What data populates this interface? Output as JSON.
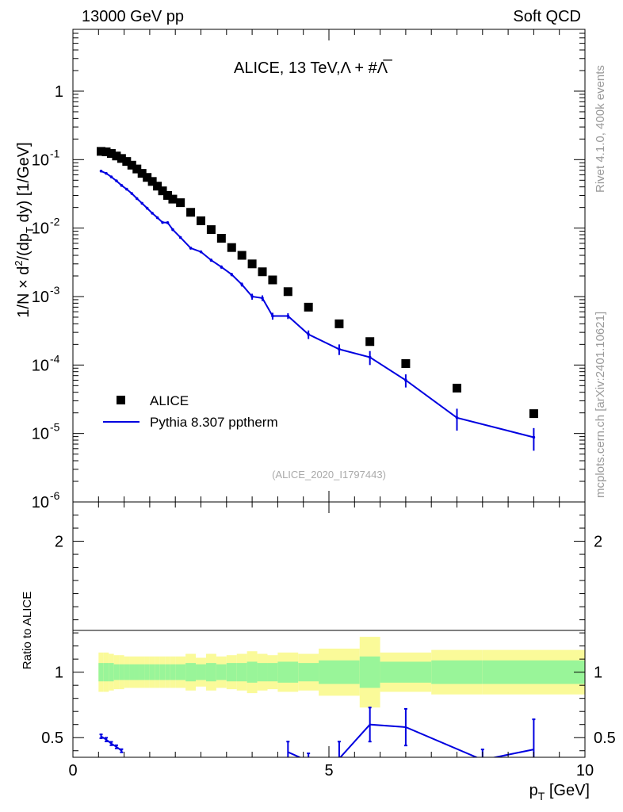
{
  "header": {
    "left": "13000 GeV pp",
    "right": "Soft QCD"
  },
  "plot_title": {
    "main": "ALICE, 13 TeV,",
    "particles": "Λ + #Λ̅"
  },
  "side_labels": {
    "rivet": "Rivet 4.1.0,  400k events",
    "mcplots": "mcplots.cern.ch [arXiv:2401.10621]"
  },
  "analysis_id": "(ALICE_2020_I1797443)",
  "legend": {
    "data": "ALICE",
    "mc": "Pythia 8.307 pptherm"
  },
  "colors": {
    "data": "#000000",
    "mc": "#0000e0",
    "band_inner": "#99f599",
    "band_outer": "#fafa99"
  },
  "chart_data": [
    {
      "type": "scatter",
      "title": "ALICE, 13 TeV, Λ + #Λ̅",
      "xlabel": "p_T [GeV]",
      "ylabel": "1/N × d²/(dp_T dy) [1/GeV]",
      "yscale": "log",
      "xlim": [
        0,
        10
      ],
      "ylim": [
        1e-06,
        8
      ],
      "ytick_labels": [
        {
          "v": 1,
          "base": "1",
          "exp": ""
        },
        {
          "v": 0.1,
          "base": "10",
          "exp": "-1"
        },
        {
          "v": 0.01,
          "base": "10",
          "exp": "-2"
        },
        {
          "v": 0.001,
          "base": "10",
          "exp": "-3"
        },
        {
          "v": 0.0001,
          "base": "10",
          "exp": "-4"
        },
        {
          "v": 1e-05,
          "base": "10",
          "exp": "-5"
        },
        {
          "v": 1e-06,
          "base": "10",
          "exp": "-6"
        }
      ],
      "series": [
        {
          "name": "ALICE",
          "x": [
            0.55,
            0.65,
            0.75,
            0.85,
            0.95,
            1.05,
            1.15,
            1.25,
            1.35,
            1.45,
            1.55,
            1.65,
            1.75,
            1.85,
            1.95,
            2.1,
            2.3,
            2.5,
            2.7,
            2.9,
            3.1,
            3.3,
            3.5,
            3.7,
            3.9,
            4.2,
            4.6,
            5.2,
            5.8,
            6.5,
            7.5,
            9.0
          ],
          "y": [
            0.132,
            0.13,
            0.123,
            0.113,
            0.104,
            0.094,
            0.083,
            0.073,
            0.063,
            0.055,
            0.048,
            0.041,
            0.035,
            0.03,
            0.0265,
            0.0235,
            0.017,
            0.0128,
            0.0095,
            0.0071,
            0.0052,
            0.004,
            0.003,
            0.0023,
            0.00175,
            0.00118,
            0.0007,
            0.0004,
            0.00022,
            0.000105,
            4.6e-05,
            1.95e-05
          ]
        },
        {
          "name": "Pythia 8.307 pptherm",
          "x": [
            0.55,
            0.65,
            0.75,
            0.85,
            0.95,
            1.05,
            1.15,
            1.25,
            1.35,
            1.45,
            1.55,
            1.65,
            1.75,
            1.85,
            1.95,
            2.1,
            2.3,
            2.5,
            2.7,
            2.9,
            3.1,
            3.3,
            3.5,
            3.7,
            3.9,
            4.2,
            4.6,
            5.2,
            5.8,
            6.5,
            7.5,
            9.0
          ],
          "y": [
            0.068,
            0.063,
            0.056,
            0.049,
            0.042,
            0.037,
            0.032,
            0.027,
            0.023,
            0.0195,
            0.0165,
            0.0142,
            0.0121,
            0.012,
            0.0095,
            0.0073,
            0.0051,
            0.0045,
            0.0034,
            0.0027,
            0.0021,
            0.0015,
            0.001,
            0.00095,
            0.00052,
            0.00052,
            0.00028,
            0.00017,
            0.00013,
            6e-05,
            1.7e-05,
            8.8e-06
          ],
          "err": [
            0.0025,
            0.002,
            0.0018,
            0.0016,
            0.0014,
            0.0012,
            0.001,
            0.0009,
            0.0008,
            0.0007,
            0.0006,
            0.0006,
            0.0005,
            0.0006,
            0.0004,
            0.0003,
            0.00025,
            0.0002,
            0.00018,
            0.00015,
            0.00012,
            0.0001,
            0.0001,
            9e-05,
            6e-05,
            5e-05,
            4e-05,
            3e-05,
            3e-05,
            1.3e-05,
            6e-06,
            3.2e-06
          ]
        }
      ]
    },
    {
      "type": "line",
      "ylabel": "Ratio to ALICE",
      "xlabel": "p_T [GeV]",
      "xlim": [
        0,
        10
      ],
      "ylim": [
        0.35,
        2.3
      ],
      "xticks": [
        0,
        5,
        10
      ],
      "yticks": [
        0.5,
        1,
        2
      ],
      "bins": [
        0.5,
        0.6,
        0.7,
        0.8,
        0.9,
        1.0,
        1.1,
        1.2,
        1.3,
        1.4,
        1.5,
        1.6,
        1.7,
        1.8,
        1.9,
        2.0,
        2.2,
        2.4,
        2.6,
        2.8,
        3.0,
        3.2,
        3.4,
        3.6,
        3.8,
        4.0,
        4.4,
        4.8,
        5.6,
        6.0,
        7.0,
        8.0,
        10.0
      ],
      "band_inner": [
        0.07,
        0.07,
        0.07,
        0.06,
        0.06,
        0.06,
        0.06,
        0.06,
        0.06,
        0.06,
        0.06,
        0.06,
        0.06,
        0.06,
        0.06,
        0.06,
        0.07,
        0.06,
        0.07,
        0.06,
        0.07,
        0.07,
        0.08,
        0.07,
        0.07,
        0.08,
        0.07,
        0.09,
        0.12,
        0.08,
        0.09,
        0.09
      ],
      "band_outer": [
        0.15,
        0.15,
        0.14,
        0.13,
        0.13,
        0.12,
        0.12,
        0.12,
        0.12,
        0.12,
        0.12,
        0.12,
        0.12,
        0.12,
        0.12,
        0.12,
        0.14,
        0.11,
        0.14,
        0.12,
        0.13,
        0.14,
        0.16,
        0.14,
        0.13,
        0.15,
        0.14,
        0.18,
        0.27,
        0.15,
        0.17,
        0.17
      ],
      "series": [
        {
          "name": "Pythia 8.307 pptherm",
          "x": [
            0.55,
            0.65,
            0.75,
            0.85,
            0.95,
            4.2,
            4.6,
            5.2,
            5.8,
            6.5,
            8.0,
            9.0
          ],
          "y": [
            0.51,
            0.485,
            0.455,
            0.43,
            0.4,
            0.39,
            0.32,
            0.34,
            0.6,
            0.58,
            0.33,
            0.41
          ],
          "err": [
            0.015,
            0.014,
            0.013,
            0.012,
            0.012,
            0.08,
            0.06,
            0.13,
            0.13,
            0.14,
            0.08,
            0.23
          ]
        }
      ]
    }
  ]
}
